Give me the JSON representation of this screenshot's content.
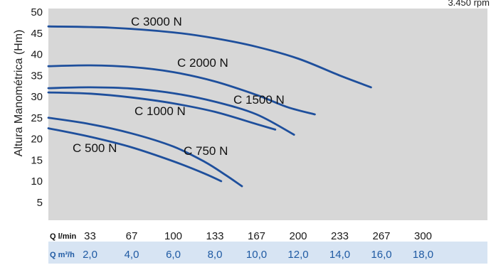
{
  "chart_data": {
    "type": "line",
    "ylabel": "Altura Manométrica (Hm)",
    "rpm_note": "3.450 rpm",
    "ylim": [
      0,
      50
    ],
    "yticks": [
      5,
      10,
      15,
      20,
      25,
      30,
      35,
      40,
      45,
      50
    ],
    "x_row_lmin": {
      "label": "Q l/min",
      "ticks": [
        "33",
        "67",
        "100",
        "133",
        "167",
        "200",
        "233",
        "267",
        "300"
      ]
    },
    "x_row_m3h": {
      "label": "Q m³/h",
      "ticks": [
        "2,0",
        "4,0",
        "6,0",
        "8,0",
        "10,0",
        "12,0",
        "14,0",
        "16,0",
        "18,0"
      ]
    },
    "series": [
      {
        "name": "C 3000 N",
        "points": [
          [
            0,
            46.6
          ],
          [
            3,
            46.3
          ],
          [
            6,
            45.2
          ],
          [
            8,
            43.8
          ],
          [
            10,
            41.8
          ],
          [
            12,
            39.0
          ],
          [
            14,
            35.0
          ],
          [
            15.5,
            32.2
          ]
        ]
      },
      {
        "name": "C 2000 N",
        "points": [
          [
            0,
            37.2
          ],
          [
            2,
            37.4
          ],
          [
            4,
            37.0
          ],
          [
            6,
            35.8
          ],
          [
            8,
            33.6
          ],
          [
            10,
            30.4
          ],
          [
            11.5,
            27.5
          ],
          [
            12.8,
            25.8
          ]
        ]
      },
      {
        "name": "C 1500 N",
        "points": [
          [
            0,
            32.0
          ],
          [
            2,
            32.2
          ],
          [
            4,
            31.9
          ],
          [
            6,
            30.8
          ],
          [
            8,
            28.8
          ],
          [
            10,
            25.8
          ],
          [
            11.8,
            21.0
          ]
        ]
      },
      {
        "name": "C 1000 N",
        "points": [
          [
            0,
            31.0
          ],
          [
            2,
            30.7
          ],
          [
            4,
            29.8
          ],
          [
            6,
            28.4
          ],
          [
            8,
            26.4
          ],
          [
            10,
            23.5
          ],
          [
            10.9,
            22.2
          ]
        ]
      },
      {
        "name": "C 750 N",
        "points": [
          [
            0,
            25.0
          ],
          [
            2,
            23.5
          ],
          [
            4,
            21.3
          ],
          [
            6,
            18.2
          ],
          [
            7.5,
            14.6
          ],
          [
            8.5,
            11.5
          ],
          [
            9.3,
            8.8
          ]
        ]
      },
      {
        "name": "C 500 N",
        "points": [
          [
            0,
            22.5
          ],
          [
            2,
            20.5
          ],
          [
            4,
            18.0
          ],
          [
            6,
            14.7
          ],
          [
            7.5,
            11.8
          ],
          [
            8.3,
            10.0
          ]
        ]
      }
    ]
  }
}
